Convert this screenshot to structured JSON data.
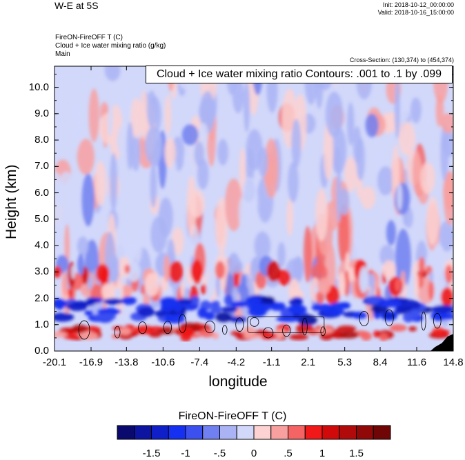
{
  "header": {
    "title": "W-E at 5S",
    "init": "Init: 2018-10-12_00:00:00",
    "valid": "Valid: 2018-10-16_15:00:00",
    "field1": "FireON-FireOFF T   (C)",
    "field2": "Cloud + Ice water mixing ratio   (g/kg)",
    "field3": "Main",
    "cross_section": "Cross-Section: (130,374) to (454,374)",
    "contour_info": "Cloud + Ice water mixing ratio Contours: .001 to .1 by .099"
  },
  "chart_data": {
    "type": "heatmap",
    "title": "W-E at 5S",
    "xlabel": "longitude",
    "ylabel": "Height (km)",
    "xlim": [
      -20.1,
      14.8
    ],
    "ylim": [
      0.0,
      10.8
    ],
    "x_ticks": [
      "-20.1",
      "-16.9",
      "-13.8",
      "-10.6",
      "-7.4",
      "-4.2",
      "-1.1",
      "2.1",
      "5.3",
      "8.4",
      "11.6",
      "14.8"
    ],
    "y_ticks": [
      "0.0",
      "1.0",
      "2.0",
      "3.0",
      "4.0",
      "5.0",
      "6.0",
      "7.0",
      "8.0",
      "9.0",
      "10.0"
    ],
    "colorbar": {
      "title": "FireON-FireOFF T  (C)",
      "labels": [
        "-1.5",
        "-1",
        "-.5",
        "0",
        ".5",
        "1",
        "1.5"
      ],
      "label_values": [
        -1.5,
        -1.0,
        -0.5,
        0.0,
        0.5,
        1.0,
        1.5
      ],
      "levels": [
        -1.75,
        -1.5,
        -1.25,
        -1.0,
        -0.75,
        -0.5,
        -0.25,
        0.0,
        0.25,
        0.5,
        0.75,
        1.0,
        1.25,
        1.5,
        1.75
      ],
      "colors": [
        "#0a0a6e",
        "#0d14a0",
        "#1020c8",
        "#1530f0",
        "#3c50f0",
        "#7080f0",
        "#aab4f5",
        "#d2d8fa",
        "#fcd2d2",
        "#f8a0a0",
        "#f56464",
        "#f01818",
        "#d00a0a",
        "#b00a0a",
        "#900808",
        "#700505"
      ]
    },
    "cold_band": {
      "height_km": [
        1.15,
        1.95
      ],
      "anomaly_c": -1.2
    },
    "warm_band": {
      "height_km": [
        0.5,
        0.9
      ],
      "anomaly_c": 0.8
    },
    "contour_range": [
      0.001,
      0.1
    ]
  }
}
